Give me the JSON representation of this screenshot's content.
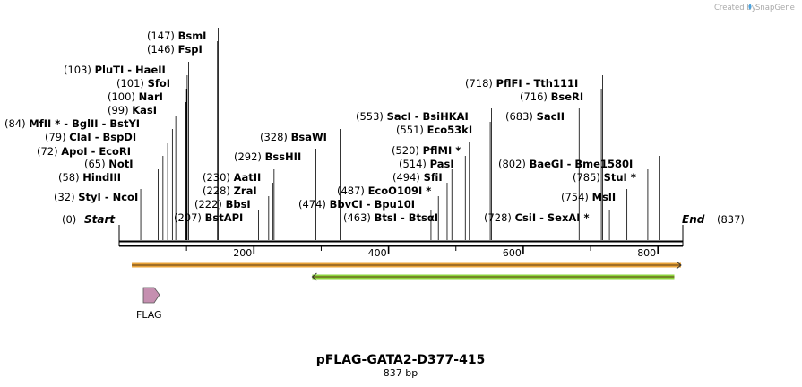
{
  "header": {
    "created_by": "Created by",
    "brand": "SnapGene"
  },
  "plasmid": {
    "name": "pFLAG-GATA2-D377-415",
    "length_label": "837 bp",
    "length": 837
  },
  "ends": {
    "start": {
      "pos": "(0)",
      "label": "Start"
    },
    "end": {
      "pos": "(837)",
      "label": "End"
    }
  },
  "ruler": {
    "ticks": [
      "200",
      "400",
      "600",
      "800"
    ]
  },
  "sites": [
    {
      "pos": "(32)",
      "name": "StyI   -  NcoI",
      "bp": 32
    },
    {
      "pos": "(58)",
      "name": "HindIII",
      "bp": 58
    },
    {
      "pos": "(65)",
      "name": "NotI",
      "bp": 65
    },
    {
      "pos": "(72)",
      "name": "ApoI   -  EcoRI",
      "bp": 72
    },
    {
      "pos": "(79)",
      "name": "ClaI   -  BspDI",
      "bp": 79
    },
    {
      "pos": "(84)",
      "name": "MfII *  -  BglII   -  BstYI",
      "bp": 84
    },
    {
      "pos": "(99)",
      "name": "KasI",
      "bp": 99
    },
    {
      "pos": "(100)",
      "name": "NarI",
      "bp": 100
    },
    {
      "pos": "(101)",
      "name": "SfoI",
      "bp": 101
    },
    {
      "pos": "(103)",
      "name": "PluTI   -  HaeII",
      "bp": 103
    },
    {
      "pos": "(146)",
      "name": "FspI",
      "bp": 146
    },
    {
      "pos": "(147)",
      "name": "BsmI",
      "bp": 147
    },
    {
      "pos": "(207)",
      "name": "BstAPI",
      "bp": 207
    },
    {
      "pos": "(222)",
      "name": "BbsI",
      "bp": 222
    },
    {
      "pos": "(228)",
      "name": "ZraI",
      "bp": 228
    },
    {
      "pos": "(230)",
      "name": "AatII",
      "bp": 230
    },
    {
      "pos": "(292)",
      "name": "BssHII",
      "bp": 292
    },
    {
      "pos": "(328)",
      "name": "BsaWI",
      "bp": 328
    },
    {
      "pos": "(463)",
      "name": "BtsI   -  BtsαI",
      "bp": 463
    },
    {
      "pos": "(474)",
      "name": "BbvCI   -  Bpu10I",
      "bp": 474
    },
    {
      "pos": "(487)",
      "name": "EcoO109I *",
      "bp": 487
    },
    {
      "pos": "(494)",
      "name": "SfiI",
      "bp": 494
    },
    {
      "pos": "(514)",
      "name": "PasI",
      "bp": 514
    },
    {
      "pos": "(520)",
      "name": "PflMI *",
      "bp": 520
    },
    {
      "pos": "(551)",
      "name": "Eco53kI",
      "bp": 551
    },
    {
      "pos": "(553)",
      "name": "SacI   -  BsiHKAI",
      "bp": 553
    },
    {
      "pos": "(683)",
      "name": "SacII",
      "bp": 683
    },
    {
      "pos": "(716)",
      "name": "BseRI",
      "bp": 716
    },
    {
      "pos": "(718)",
      "name": "PflFI   -  Tth111I",
      "bp": 718
    },
    {
      "pos": "(728)",
      "name": "CsiI   -  SexAI *",
      "bp": 728
    },
    {
      "pos": "(754)",
      "name": "MslI",
      "bp": 754
    },
    {
      "pos": "(785)",
      "name": "StuI *",
      "bp": 785
    },
    {
      "pos": "(802)",
      "name": "BaeGI   -  Bme1580I",
      "bp": 802
    }
  ],
  "features": [
    {
      "name": "orange-feature",
      "label": "",
      "color": "#e8a33a",
      "start_bp": 32,
      "end_bp": 837,
      "direction": "forward"
    },
    {
      "name": "green-feature",
      "label": "",
      "color": "#8cd43c",
      "start_bp": 300,
      "end_bp": 827,
      "direction": "reverse"
    },
    {
      "name": "flag-feature",
      "label": "FLAG",
      "color": "#c58fb0",
      "start_bp": 35,
      "end_bp": 59,
      "direction": "forward"
    }
  ]
}
